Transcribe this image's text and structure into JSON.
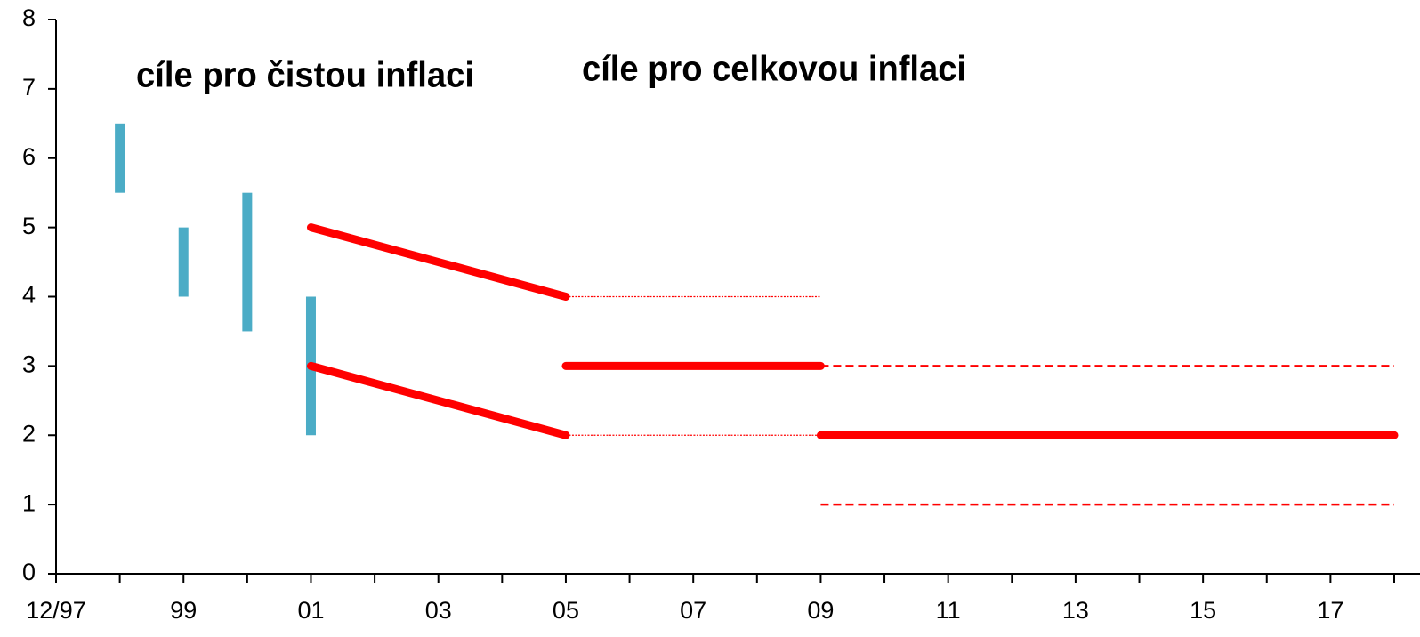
{
  "chart_data": {
    "type": "line",
    "annotations": [
      {
        "text": "cíle pro čistou inflaci",
        "color": "#4bacc6"
      },
      {
        "text": "cíle pro celkovou inflaci",
        "color": "#ff0000"
      }
    ],
    "ranges": {
      "color": "#4bacc6",
      "x": [
        1998,
        1999,
        2000,
        2001
      ],
      "low": [
        5.5,
        4,
        3.5,
        2
      ],
      "high": [
        6.5,
        5,
        5.5,
        4
      ]
    },
    "series": [
      {
        "color": "#ff0000",
        "style": "solid",
        "x": [
          2001,
          2005
        ],
        "values": [
          5,
          4
        ]
      },
      {
        "color": "#ff0000",
        "style": "solid",
        "x": [
          2001,
          2005
        ],
        "values": [
          3,
          2
        ]
      },
      {
        "color": "#ff0000",
        "style": "dotted",
        "x": [
          2005,
          2009
        ],
        "values": [
          4,
          4
        ]
      },
      {
        "color": "#ff0000",
        "style": "dotted",
        "x": [
          2005,
          2009
        ],
        "values": [
          2,
          2
        ]
      },
      {
        "color": "#ff0000",
        "style": "solid",
        "x": [
          2005,
          2009
        ],
        "values": [
          3,
          3
        ]
      },
      {
        "color": "#ff0000",
        "style": "dashed",
        "x": [
          2009,
          2018
        ],
        "values": [
          3,
          3
        ]
      },
      {
        "color": "#ff0000",
        "style": "solid",
        "x": [
          2009,
          2018
        ],
        "values": [
          2,
          2
        ]
      },
      {
        "color": "#ff0000",
        "style": "dashed",
        "x": [
          2009,
          2018
        ],
        "values": [
          1,
          1
        ]
      }
    ],
    "xlim": [
      1997,
      2018
    ],
    "xticks": [
      {
        "value": 1997,
        "label": "12/97"
      },
      {
        "value": 1999,
        "label": "99"
      },
      {
        "value": 2001,
        "label": "01"
      },
      {
        "value": 2003,
        "label": "03"
      },
      {
        "value": 2005,
        "label": "05"
      },
      {
        "value": 2007,
        "label": "07"
      },
      {
        "value": 2009,
        "label": "09"
      },
      {
        "value": 2011,
        "label": "11"
      },
      {
        "value": 2013,
        "label": "13"
      },
      {
        "value": 2015,
        "label": "15"
      },
      {
        "value": 2017,
        "label": "17"
      }
    ],
    "xminor_ticks": [
      1998,
      2000,
      2002,
      2004,
      2006,
      2008,
      2010,
      2012,
      2014,
      2016,
      2018
    ],
    "ylim": [
      0,
      8
    ],
    "yticks": [
      0,
      1,
      2,
      3,
      4,
      5,
      6,
      7,
      8
    ],
    "grid": false
  }
}
